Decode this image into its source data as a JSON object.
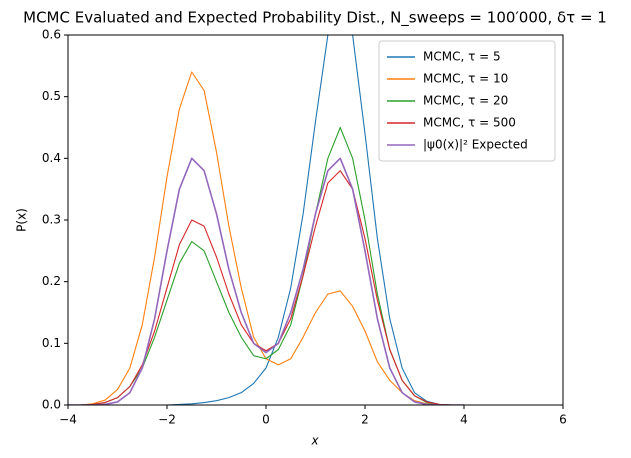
{
  "chart_data": {
    "type": "line",
    "title": "MCMC Evaluated and Expected Probability Dist., N_sweeps = 100′000, δτ = 1",
    "x_label": "x",
    "y_label": "P(x)",
    "x": [
      -4,
      -3.75,
      -3.5,
      -3.25,
      -3,
      -2.75,
      -2.5,
      -2.25,
      -2,
      -1.75,
      -1.5,
      -1.25,
      -1,
      -0.75,
      -0.5,
      -0.25,
      0,
      0.25,
      0.5,
      0.75,
      1,
      1.25,
      1.5,
      1.75,
      2,
      2.25,
      2.5,
      2.75,
      3,
      3.25,
      3.5,
      3.75,
      4
    ],
    "series": [
      {
        "name": "MCMC, τ = 5",
        "color": "#1f77b4",
        "values": [
          0,
          0,
          0,
          0,
          0,
          0,
          0,
          0,
          0,
          0.001,
          0.002,
          0.004,
          0.007,
          0.012,
          0.02,
          0.035,
          0.06,
          0.11,
          0.19,
          0.31,
          0.46,
          0.6,
          0.68,
          0.6,
          0.44,
          0.27,
          0.14,
          0.06,
          0.02,
          0.006,
          0.001,
          0,
          0
        ]
      },
      {
        "name": "MCMC, τ = 10",
        "color": "#ff7f0e",
        "values": [
          0,
          0,
          0.002,
          0.008,
          0.025,
          0.06,
          0.13,
          0.24,
          0.37,
          0.48,
          0.54,
          0.51,
          0.41,
          0.29,
          0.19,
          0.11,
          0.075,
          0.065,
          0.075,
          0.11,
          0.15,
          0.18,
          0.185,
          0.16,
          0.12,
          0.07,
          0.04,
          0.02,
          0.007,
          0.002,
          0,
          0,
          0
        ]
      },
      {
        "name": "MCMC, τ = 20",
        "color": "#2ca02c",
        "values": [
          0,
          0,
          0.001,
          0.004,
          0.012,
          0.03,
          0.06,
          0.11,
          0.17,
          0.23,
          0.265,
          0.25,
          0.2,
          0.15,
          0.11,
          0.08,
          0.075,
          0.09,
          0.13,
          0.21,
          0.31,
          0.4,
          0.45,
          0.4,
          0.3,
          0.18,
          0.09,
          0.04,
          0.015,
          0.004,
          0.001,
          0,
          0
        ]
      },
      {
        "name": "MCMC, τ = 500",
        "color": "#d62728",
        "values": [
          0,
          0,
          0.001,
          0.004,
          0.012,
          0.03,
          0.065,
          0.12,
          0.19,
          0.26,
          0.3,
          0.29,
          0.24,
          0.18,
          0.13,
          0.1,
          0.088,
          0.1,
          0.14,
          0.21,
          0.29,
          0.36,
          0.38,
          0.35,
          0.27,
          0.17,
          0.09,
          0.04,
          0.015,
          0.005,
          0.001,
          0,
          0
        ]
      },
      {
        "name": "|ψ0(x)|² Expected",
        "color": "#9467bd",
        "values": [
          0,
          0,
          0,
          0.001,
          0.005,
          0.02,
          0.06,
          0.14,
          0.25,
          0.35,
          0.4,
          0.38,
          0.31,
          0.22,
          0.15,
          0.1,
          0.085,
          0.1,
          0.15,
          0.22,
          0.31,
          0.38,
          0.4,
          0.35,
          0.25,
          0.14,
          0.06,
          0.02,
          0.005,
          0.001,
          0,
          0,
          0
        ]
      }
    ],
    "xlim": [
      -4,
      6
    ],
    "xticks": [
      {
        "value": -4,
        "label": "−4"
      },
      {
        "value": -2,
        "label": "−2"
      },
      0,
      2,
      4,
      6
    ],
    "ylim": [
      0,
      0.6
    ],
    "yticks": [
      {
        "value": 0,
        "label": "0.0"
      },
      0.1,
      0.2,
      0.3,
      0.4,
      0.5,
      0.6
    ],
    "legend": "upper right"
  }
}
